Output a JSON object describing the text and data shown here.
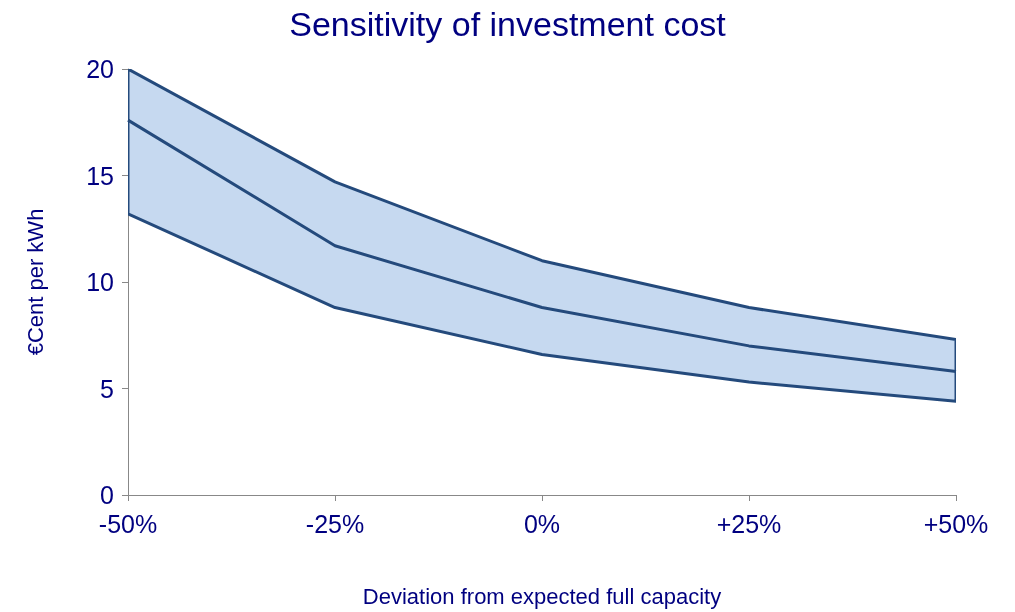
{
  "chart_data": {
    "type": "line",
    "title": "Sensitivity of investment cost",
    "xlabel": "Deviation from expected full capacity",
    "ylabel": "€Cent per kWh",
    "categories": [
      "-50%",
      "-25%",
      "0%",
      "+25%",
      "+50%"
    ],
    "series": [
      {
        "color": "#244a7c",
        "values": [
          17.6,
          11.7,
          8.8,
          7.0,
          5.8
        ],
        "lower": [
          13.2,
          8.8,
          6.6,
          5.3,
          4.4
        ],
        "upper": [
          20,
          14.7,
          11.0,
          8.8,
          7.3
        ]
      }
    ],
    "ylim": [
      0,
      20
    ],
    "yticks": [
      0,
      5,
      10,
      15,
      20
    ],
    "grid": false,
    "marker": "none",
    "line_style": "solid"
  }
}
